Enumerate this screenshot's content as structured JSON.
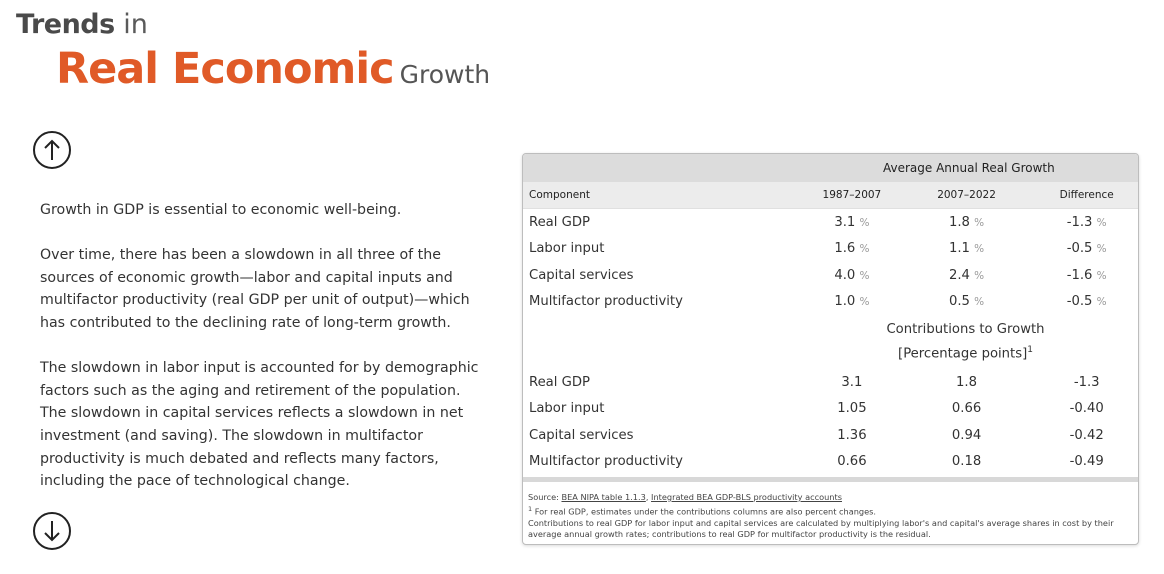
{
  "header": {
    "trends": "Trends",
    "in": "in",
    "main": "Real Economic",
    "growth": "Growth"
  },
  "nav": {
    "up_icon": "arrow-up-circle-icon",
    "down_icon": "arrow-down-circle-icon"
  },
  "body": {
    "p1": "Growth in GDP is essential to economic well-being.",
    "p2": "Over time, there has been a slowdown in all three of the sources of economic growth—labor and capital inputs and multifactor productivity (real GDP per unit of output)—which has contributed to the declining rate of long-term growth.",
    "p3": "The slowdown in labor input is accounted for by demographic factors such as the aging and retirement of the population. The slowdown in capital services reflects a slowdown in net investment (and saving). The slowdown in multifactor productivity is much debated and reflects many factors, including the pace of technological change."
  },
  "table": {
    "title": "Average Annual Real Growth",
    "columns": [
      "Component",
      "1987–2007",
      "2007–2022",
      "Difference"
    ],
    "pct": "%",
    "growth_rows": [
      {
        "name": "Real GDP",
        "v1": "3.1",
        "v2": "1.8",
        "v3": "-1.3"
      },
      {
        "name": "Labor input",
        "v1": "1.6",
        "v2": "1.1",
        "v3": "-0.5"
      },
      {
        "name": "Capital services",
        "v1": "4.0",
        "v2": "2.4",
        "v3": "-1.6"
      },
      {
        "name": "Multifactor productivity",
        "v1": "1.0",
        "v2": "0.5",
        "v3": "-0.5"
      }
    ],
    "sub_title": "Contributions to Growth",
    "sub_unit": "[Percentage points]",
    "sub_sup": "1",
    "contrib_rows": [
      {
        "name": "Real GDP",
        "v1": "3.1",
        "v2": "1.8",
        "v3": "-1.3"
      },
      {
        "name": "Labor input",
        "v1": "1.05",
        "v2": "0.66",
        "v3": "-0.40"
      },
      {
        "name": "Capital services",
        "v1": "1.36",
        "v2": "0.94",
        "v3": "-0.42"
      },
      {
        "name": "Multifactor productivity",
        "v1": "0.66",
        "v2": "0.18",
        "v3": "-0.49"
      }
    ],
    "notes": {
      "source_prefix": "Source: ",
      "source_link1": "BEA NIPA table 1.1.3",
      "source_sep": ", ",
      "source_link2": "Integrated BEA GDP-BLS productivity accounts",
      "note1_sup": "1",
      "note1": " For real GDP, estimates under the contributions columns are also percent changes.",
      "note2": "Contributions to real GDP for labor input and capital services are calculated by multiplying labor's and capital's average shares in cost by their average annual growth rates; contributions to real GDP for multifactor productivity is the residual."
    }
  },
  "colors": {
    "accent": "#e05a27",
    "header_band": "#dcdcdc",
    "column_band": "#ececec"
  }
}
